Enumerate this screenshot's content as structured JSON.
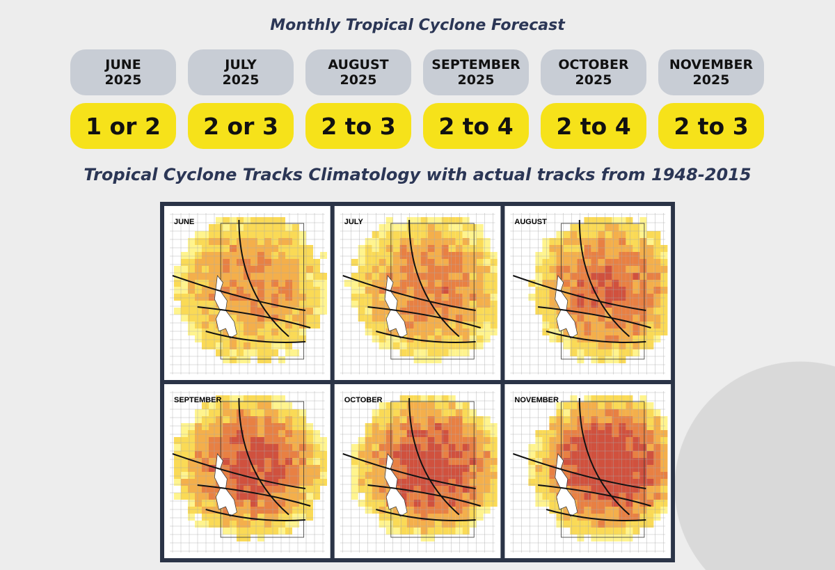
{
  "header": {
    "title": "Monthly Tropical Cyclone Forecast"
  },
  "forecast": [
    {
      "month": "JUNE",
      "year": "2025",
      "count": "1 or 2"
    },
    {
      "month": "JULY",
      "year": "2025",
      "count": "2 or 3"
    },
    {
      "month": "AUGUST",
      "year": "2025",
      "count": "2 to 3"
    },
    {
      "month": "SEPTEMBER",
      "year": "2025",
      "count": "2 to 4"
    },
    {
      "month": "OCTOBER",
      "year": "2025",
      "count": "2 to 4"
    },
    {
      "month": "NOVEMBER",
      "year": "2025",
      "count": "2 to 3"
    }
  ],
  "maps": {
    "title": "Tropical Cyclone Tracks Climatology with actual tracks from 1948-2015",
    "panels": [
      {
        "label": "JUNE"
      },
      {
        "label": "JULY"
      },
      {
        "label": "AUGUST"
      },
      {
        "label": "SEPTEMBER"
      },
      {
        "label": "OCTOBER"
      },
      {
        "label": "NOVEMBER"
      }
    ]
  }
}
